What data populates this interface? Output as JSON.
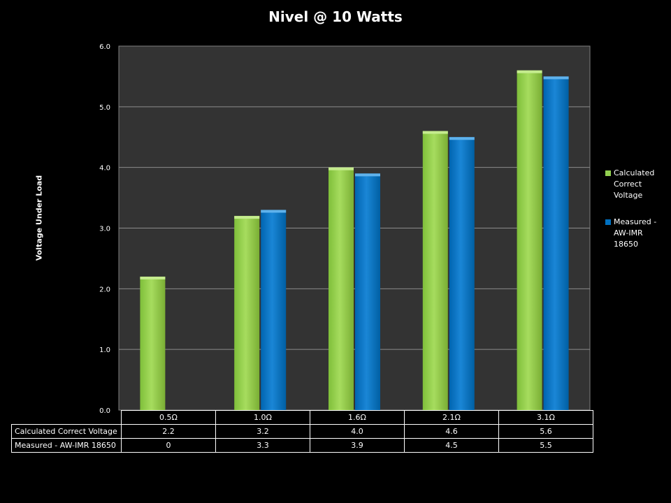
{
  "chart_data": {
    "type": "bar",
    "title": "Nivel @ 10 Watts",
    "xlabel": "",
    "ylabel": "Voltage Under Load",
    "categories": [
      "0.5Ω",
      "1.0Ω",
      "1.6Ω",
      "2.1Ω",
      "3.1Ω"
    ],
    "series": [
      {
        "name": "Calculated Correct Voltage",
        "legend_label": "Calculated Correct Voltage",
        "values": [
          2.2,
          3.2,
          4.0,
          4.6,
          5.6
        ],
        "table_values": [
          "2.2",
          "3.2",
          "4.0",
          "4.6",
          "5.6"
        ],
        "color": "#92d050"
      },
      {
        "name": "Measured - AW-IMR 18650",
        "legend_label": "Measured - AW-IMR 18650",
        "values": [
          0,
          3.3,
          3.9,
          4.5,
          5.5
        ],
        "table_values": [
          "0",
          "3.3",
          "3.9",
          "4.5",
          "5.5"
        ],
        "color": "#0070c0"
      }
    ],
    "ylim": [
      0,
      6
    ],
    "yticks": [
      "0.0",
      "1.0",
      "2.0",
      "3.0",
      "4.0",
      "5.0",
      "6.0"
    ],
    "grid": true,
    "legend_position": "right",
    "plot_background": "#333333",
    "gridline_color": "#8c8c8c"
  }
}
